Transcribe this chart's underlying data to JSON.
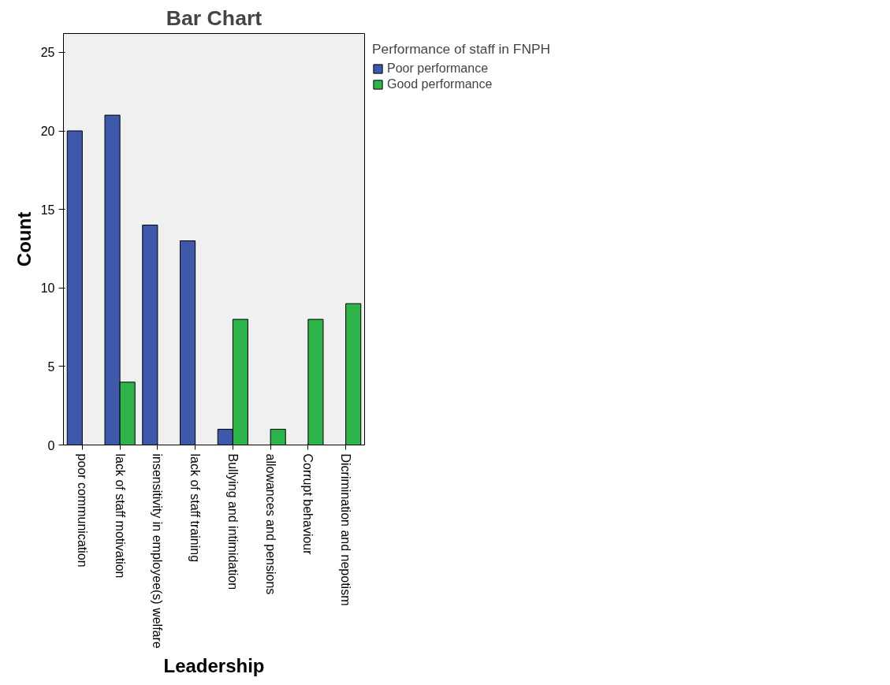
{
  "chart_data": {
    "type": "bar",
    "title": "Bar Chart",
    "xlabel": "Leadership",
    "ylabel": "Count",
    "legend_title": "Performance of staff in FNPH",
    "categories": [
      "poor communication",
      "lack of staff motivation",
      "insensitivity in employee(s) welfare",
      "lack of staff training",
      "Bullying and intimidation",
      "allowances and pensions",
      "Corrupt behaviour",
      "Dicrimination and nepotism"
    ],
    "series": [
      {
        "name": "Poor performance",
        "color": "#3e58ac",
        "values": [
          20,
          21,
          14,
          13,
          1,
          null,
          null,
          null
        ]
      },
      {
        "name": "Good performance",
        "color": "#2db34a",
        "values": [
          null,
          4,
          null,
          null,
          8,
          1,
          8,
          9
        ]
      }
    ],
    "ylim": [
      0,
      26.2
    ],
    "yticks": [
      0,
      5,
      10,
      15,
      20,
      25
    ],
    "grid": false,
    "legend": "top right"
  }
}
